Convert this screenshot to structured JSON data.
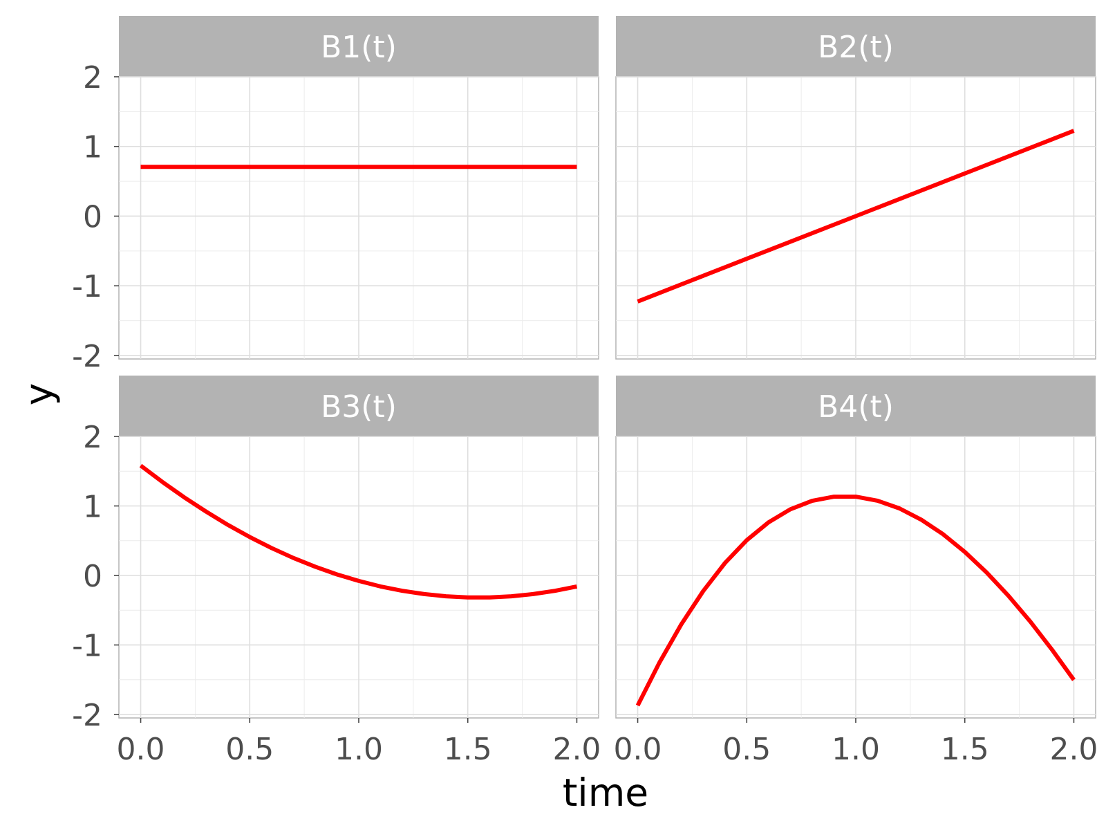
{
  "chart_data": {
    "type": "line",
    "xlabel": "time",
    "ylabel": "y",
    "xlim": [
      -0.1,
      2.1
    ],
    "ylim": [
      -2.05,
      2.0
    ],
    "x_ticks": [
      "0.0",
      "0.5",
      "1.0",
      "1.5",
      "2.0"
    ],
    "y_ticks": [
      "-2",
      "-1",
      "0",
      "1",
      "2"
    ],
    "grid": true,
    "line_color": "#ff0000",
    "panels": [
      {
        "label": "B1(t)",
        "x": [
          0.0,
          0.5,
          1.0,
          1.5,
          2.0
        ],
        "y": [
          0.707,
          0.707,
          0.707,
          0.707,
          0.707
        ]
      },
      {
        "label": "B2(t)",
        "x": [
          0.0,
          0.5,
          1.0,
          1.5,
          2.0
        ],
        "y": [
          -1.225,
          -0.612,
          0.0,
          0.612,
          1.225
        ]
      },
      {
        "label": "B3(t)",
        "x": [
          0.0,
          0.1,
          0.2,
          0.3,
          0.4,
          0.5,
          0.6,
          0.7,
          0.8,
          0.9,
          1.0,
          1.1,
          1.2,
          1.3,
          1.4,
          1.5,
          1.6,
          1.7,
          1.8,
          1.9,
          2.0
        ],
        "y": [
          1.581,
          1.344,
          1.123,
          0.918,
          0.727,
          0.553,
          0.395,
          0.252,
          0.126,
          0.015,
          -0.079,
          -0.158,
          -0.221,
          -0.268,
          -0.3,
          -0.316,
          -0.316,
          -0.3,
          -0.268,
          -0.221,
          -0.158
        ]
      },
      {
        "label": "B4(t)",
        "x": [
          0.0,
          0.1,
          0.2,
          0.3,
          0.4,
          0.5,
          0.6,
          0.7,
          0.8,
          0.9,
          1.0,
          1.1,
          1.2,
          1.3,
          1.4,
          1.5,
          1.6,
          1.7,
          1.8,
          1.9,
          2.0
        ],
        "y": [
          -1.871,
          -1.251,
          -0.703,
          -0.226,
          0.178,
          0.507,
          0.764,
          0.952,
          1.074,
          1.133,
          1.133,
          1.076,
          0.965,
          0.803,
          0.594,
          0.339,
          0.043,
          -0.292,
          -0.663,
          -1.068,
          -1.503
        ]
      }
    ]
  }
}
